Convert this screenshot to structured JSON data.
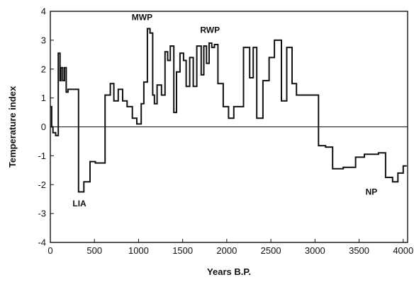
{
  "chart_data": {
    "type": "line",
    "title": "",
    "xlabel": "Years B.P.",
    "ylabel": "Temperature index",
    "xlim": [
      0,
      4050
    ],
    "ylim": [
      -4,
      4
    ],
    "xticks": [
      0,
      500,
      1000,
      1500,
      2000,
      2500,
      3000,
      3500,
      4000
    ],
    "yticks": [
      4,
      3,
      2,
      1,
      0,
      -1,
      -2,
      -3,
      -4
    ],
    "zero_line": true,
    "grid": false,
    "legend": "none",
    "line_color": "#111111",
    "series": [
      {
        "step": true,
        "x": [
          0,
          15,
          30,
          60,
          90,
          110,
          120,
          140,
          160,
          180,
          200,
          250,
          320,
          380,
          450,
          510,
          620,
          680,
          720,
          770,
          820,
          870,
          930,
          980,
          1030,
          1060,
          1100,
          1130,
          1160,
          1180,
          1210,
          1260,
          1300,
          1330,
          1360,
          1400,
          1430,
          1470,
          1510,
          1540,
          1580,
          1620,
          1660,
          1710,
          1740,
          1770,
          1800,
          1830,
          1860,
          1900,
          1960,
          2020,
          2080,
          2140,
          2190,
          2260,
          2300,
          2340,
          2410,
          2480,
          2540,
          2620,
          2680,
          2740,
          2790,
          2860,
          3040,
          3120,
          3200,
          3320,
          3460,
          3560,
          3640,
          3720,
          3800,
          3880,
          3940,
          4000,
          4040
        ],
        "y": [
          0.7,
          0,
          -0.2,
          -0.3,
          2.55,
          1.6,
          2.05,
          1.6,
          2.05,
          1.2,
          1.3,
          1.3,
          -2.25,
          -1.9,
          -1.2,
          -1.25,
          1.1,
          1.5,
          0.9,
          1.3,
          0.9,
          0.7,
          0.3,
          0.1,
          0.8,
          1.55,
          3.4,
          3.25,
          1.1,
          0.8,
          1.45,
          1.1,
          2.6,
          2.3,
          2.8,
          0.5,
          1.9,
          2.55,
          2.3,
          1.4,
          2.4,
          1.4,
          2.8,
          1.8,
          2.8,
          2.2,
          2.9,
          2.75,
          2.85,
          1.5,
          0.7,
          0.3,
          0.7,
          0.7,
          2.75,
          1.7,
          2.75,
          0.3,
          1.6,
          2.4,
          3.0,
          0.9,
          2.75,
          1.5,
          1.1,
          1.1,
          -0.65,
          -0.7,
          -1.45,
          -1.4,
          -1.05,
          -0.95,
          -0.95,
          -0.9,
          -1.75,
          -1.9,
          -1.6,
          -1.35,
          -1.35
        ]
      }
    ],
    "annotations": [
      {
        "text": "LIA",
        "x": 330,
        "y": -2.75
      },
      {
        "text": "MWP",
        "x": 1040,
        "y": 3.7
      },
      {
        "text": "RWP",
        "x": 1810,
        "y": 3.25
      },
      {
        "text": "NP",
        "x": 3640,
        "y": -2.35
      }
    ]
  }
}
